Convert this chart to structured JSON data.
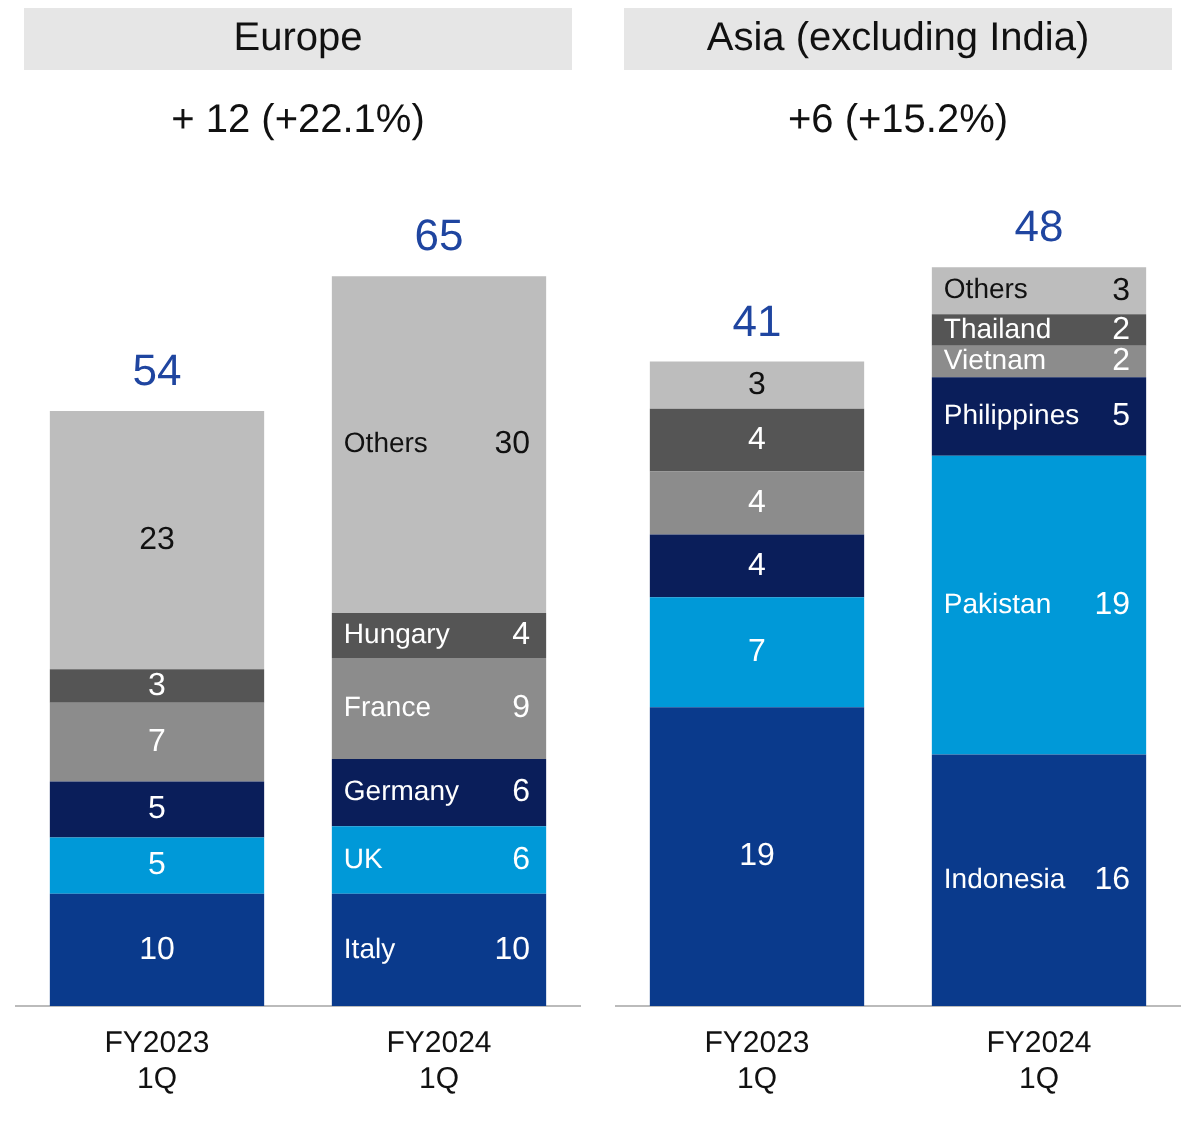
{
  "chart_data": [
    {
      "type": "bar",
      "title": "Europe",
      "subtitle": "+ 12 (+22.1%)",
      "categories": [
        "FY2023\n1Q",
        "FY2024\n1Q"
      ],
      "stacked": true,
      "data_labels": true,
      "legend": false,
      "grid": false,
      "tick_labels": "x",
      "totals": [
        "54",
        "65"
      ],
      "series": [
        {
          "name": "Italy",
          "color": "#0a3a8c",
          "values": [
            10,
            10
          ]
        },
        {
          "name": "UK",
          "color": "#0099d8",
          "values": [
            5,
            6
          ]
        },
        {
          "name": "Germany",
          "color": "#0a1e5a",
          "values": [
            5,
            6
          ]
        },
        {
          "name": "France",
          "color": "#8c8c8c",
          "values": [
            7,
            9
          ]
        },
        {
          "name": "Hungary",
          "color": "#555555",
          "values": [
            3,
            4
          ]
        },
        {
          "name": "Others",
          "color": "#bdbdbd",
          "values": [
            23,
            30
          ]
        }
      ]
    },
    {
      "type": "bar",
      "title": "Asia (excluding India)",
      "subtitle": "+6 (+15.2%)",
      "categories": [
        "FY2023\n1Q",
        "FY2024\n1Q"
      ],
      "stacked": true,
      "data_labels": true,
      "legend": false,
      "grid": false,
      "tick_labels": "x",
      "totals": [
        "41",
        "48"
      ],
      "series": [
        {
          "name": "Indonesia",
          "color": "#0a3a8c",
          "values": [
            19,
            16
          ]
        },
        {
          "name": "Pakistan",
          "color": "#0099d8",
          "values": [
            7,
            19
          ]
        },
        {
          "name": "Philippines",
          "color": "#0a1e5a",
          "values": [
            4,
            5
          ]
        },
        {
          "name": "Vietnam",
          "color": "#8c8c8c",
          "values": [
            4,
            2
          ]
        },
        {
          "name": "Thailand",
          "color": "#555555",
          "values": [
            4,
            2
          ]
        },
        {
          "name": "Others",
          "color": "#bdbdbd",
          "values": [
            3,
            3
          ]
        }
      ]
    }
  ]
}
